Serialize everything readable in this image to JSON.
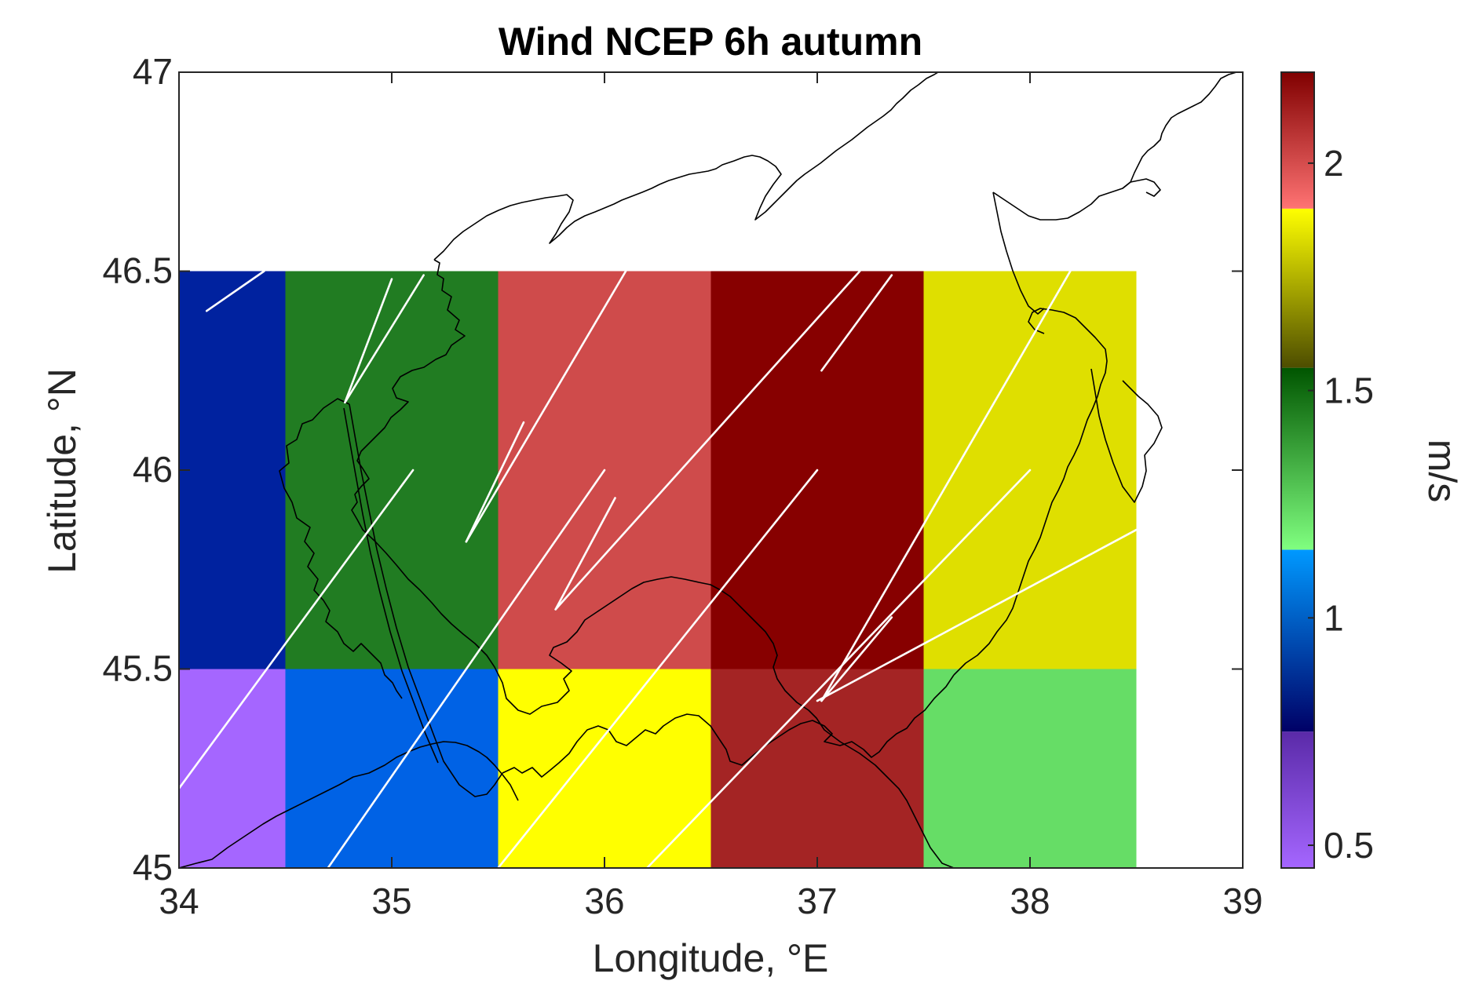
{
  "chart_data": {
    "type": "heatmap",
    "title": "Wind NCEP 6h autumn",
    "xlabel": "Longitude, °E",
    "ylabel": "Latitude, °N",
    "xlim": [
      34,
      39
    ],
    "ylim": [
      45,
      47
    ],
    "xticks": [
      "34",
      "35",
      "36",
      "37",
      "38",
      "39"
    ],
    "yticks": [
      "45",
      "45.5",
      "46",
      "46.5",
      "47"
    ],
    "grid": false,
    "colorbar": {
      "label": "m/s",
      "range": [
        0.45,
        2.2
      ],
      "ticks": [
        {
          "value": 0.5,
          "label": "0.5"
        },
        {
          "value": 1.0,
          "label": "1"
        },
        {
          "value": 1.5,
          "label": "1.5"
        },
        {
          "value": 2.0,
          "label": "2"
        }
      ],
      "segments": [
        {
          "from": 0.45,
          "to": 0.75,
          "color_bottom": "#a566ff",
          "color_top": "#5a2aa8"
        },
        {
          "from": 0.75,
          "to": 1.15,
          "color_bottom": "#000066",
          "color_top": "#0099ff"
        },
        {
          "from": 1.15,
          "to": 1.55,
          "color_bottom": "#80ff80",
          "color_top": "#005500"
        },
        {
          "from": 1.55,
          "to": 1.9,
          "color_bottom": "#4d4d00",
          "color_top": "#ffff00"
        },
        {
          "from": 1.9,
          "to": 2.2,
          "color_bottom": "#ff7373",
          "color_top": "#800000"
        }
      ]
    },
    "cells": [
      {
        "lon": [
          34.0,
          34.5
        ],
        "lat": [
          46.5,
          45.5
        ],
        "speed": 0.85,
        "color": "#00229f"
      },
      {
        "lon": [
          34.5,
          35.5
        ],
        "lat": [
          46.5,
          45.5
        ],
        "speed": 1.42,
        "color": "#217c22"
      },
      {
        "lon": [
          35.5,
          36.5
        ],
        "lat": [
          46.5,
          45.5
        ],
        "speed": 2.02,
        "color": "#cf4b4b"
      },
      {
        "lon": [
          36.5,
          37.5
        ],
        "lat": [
          46.5,
          45.5
        ],
        "speed": 2.2,
        "color": "#870000"
      },
      {
        "lon": [
          37.5,
          38.5
        ],
        "lat": [
          46.5,
          45.5
        ],
        "speed": 1.83,
        "color": "#dfdf00"
      },
      {
        "lon": [
          34.0,
          34.5
        ],
        "lat": [
          45.5,
          45.0
        ],
        "speed": 0.5,
        "color": "#a566ff"
      },
      {
        "lon": [
          34.5,
          35.5
        ],
        "lat": [
          45.5,
          45.0
        ],
        "speed": 1.05,
        "color": "#0062e5"
      },
      {
        "lon": [
          35.5,
          36.5
        ],
        "lat": [
          45.5,
          45.0
        ],
        "speed": 1.88,
        "color": "#ffff00"
      },
      {
        "lon": [
          36.5,
          37.5
        ],
        "lat": [
          45.5,
          45.0
        ],
        "speed": 2.12,
        "color": "#a42424"
      },
      {
        "lon": [
          37.5,
          38.5
        ],
        "lat": [
          45.5,
          45.0
        ],
        "speed": 1.3,
        "color": "#66dd66"
      }
    ],
    "vectors": [
      {
        "from": [
          34.4,
          46.5
        ],
        "to": [
          34.13,
          46.4
        ]
      },
      {
        "from": [
          35.15,
          46.49
        ],
        "to": [
          34.78,
          46.17
        ]
      },
      {
        "from": [
          35.0,
          46.48
        ],
        "to": [
          34.78,
          46.17
        ]
      },
      {
        "from": [
          36.1,
          46.5
        ],
        "to": [
          35.35,
          45.82
        ]
      },
      {
        "from": [
          35.62,
          46.12
        ],
        "to": [
          35.35,
          45.82
        ]
      },
      {
        "from": [
          37.2,
          46.5
        ],
        "to": [
          35.77,
          45.65
        ]
      },
      {
        "from": [
          36.05,
          45.93
        ],
        "to": [
          35.77,
          45.65
        ]
      },
      {
        "from": [
          37.35,
          46.49
        ],
        "to": [
          37.02,
          46.25
        ]
      },
      {
        "from": [
          38.2,
          46.51
        ],
        "to": [
          37.02,
          45.42
        ]
      },
      {
        "from": [
          37.35,
          45.63
        ],
        "to": [
          37.02,
          45.42
        ]
      },
      {
        "from": [
          35.1,
          46.0
        ],
        "to": [
          34.0,
          45.2
        ]
      },
      {
        "from": [
          36.0,
          46.0
        ],
        "to": [
          34.7,
          45.0
        ]
      },
      {
        "from": [
          37.0,
          46.0
        ],
        "to": [
          35.5,
          45.0
        ]
      },
      {
        "from": [
          38.0,
          46.0
        ],
        "to": [
          36.2,
          45.0
        ]
      },
      {
        "from": [
          38.5,
          45.85
        ],
        "to": [
          37.0,
          45.42
        ]
      }
    ]
  }
}
